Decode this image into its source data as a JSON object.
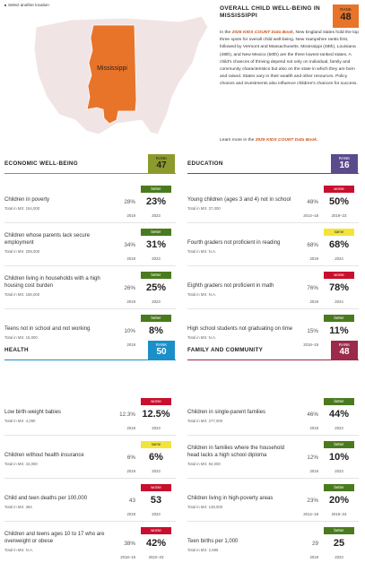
{
  "nav": {
    "back_link": "Select another location"
  },
  "map": {
    "state_label": "Mississippi"
  },
  "overview": {
    "title": "OVERALL CHILD WELL-BEING IN MISSISSIPPI",
    "rank_label": "RANK",
    "rank": 48,
    "text_before": "In the ",
    "text_emphasis": "2025 KIDS COUNT Data Book",
    "text_after": ", New England states hold the top three spots for overall child well-being. New Hampshire ranks first, followed by Vermont and Massachusetts. Mississippi (48th), Louisiana (49th), and New Mexico (50th) are the three lowest-ranked states. A child's chances of thriving depend not only on individual, family and community characteristics but also on the state in which they are born and raised. States vary in their wealth and other resources. Policy choices and investments also influence children's chances for success.",
    "learn_before": "Learn more in the ",
    "learn_emphasis": "2025 KIDS COUNT Data Book",
    "learn_after": "."
  },
  "sections": [
    {
      "title": "ECONOMIC WELL-BEING",
      "rank_label": "RANK",
      "rank": 47,
      "color": "#8c9a2c",
      "rank_text_color": "#222",
      "indicators": [
        {
          "name": "Children in poverty",
          "total": "Total in MS: 154,000",
          "old_value": "28%",
          "old_year": "2019",
          "trend": "better",
          "new_value": "23%",
          "new_year": "2023"
        },
        {
          "name": "Children whose parents lack secure employment",
          "total": "Total in MS: 209,000",
          "old_value": "34%",
          "old_year": "2019",
          "trend": "better",
          "new_value": "31%",
          "new_year": "2023"
        },
        {
          "name": "Children living in households with a high housing cost burden",
          "total": "Total in MS: 166,000",
          "old_value": "26%",
          "old_year": "2019",
          "trend": "better",
          "new_value": "25%",
          "new_year": "2023"
        },
        {
          "name": "Teens not in school and not working",
          "total": "Total in MS: 15,000",
          "old_value": "10%",
          "old_year": "2019",
          "trend": "better",
          "new_value": "8%",
          "new_year": "2023"
        }
      ]
    },
    {
      "title": "EDUCATION",
      "rank_label": "RANK",
      "rank": 16,
      "color": "#5b4a8c",
      "rank_text_color": "#fff",
      "indicators": [
        {
          "name": "Young children (ages 3 and 4) not in school",
          "total": "Total in MS: 37,000",
          "old_value": "48%",
          "old_year": "2014–18",
          "trend": "worse",
          "new_value": "50%",
          "new_year": "2019–23"
        },
        {
          "name": "Fourth graders not proficient in reading",
          "total": "Total in MS: N.A.",
          "old_value": "68%",
          "old_year": "2019",
          "trend": "same",
          "new_value": "68%",
          "new_year": "2024"
        },
        {
          "name": "Eighth graders not proficient in math",
          "total": "Total in MS: N.A.",
          "old_value": "76%",
          "old_year": "2019",
          "trend": "worse",
          "new_value": "78%",
          "new_year": "2024"
        },
        {
          "name": "High school students not graduating on time",
          "total": "Total in MS: N.A.",
          "old_value": "15%",
          "old_year": "2018–19",
          "trend": "better",
          "new_value": "11%",
          "new_year": "2021–22"
        }
      ]
    },
    {
      "title": "HEALTH",
      "rank_label": "RANK",
      "rank": 50,
      "color": "#1a8fc8",
      "rank_text_color": "#fff",
      "indicators": [
        {
          "name": "Low birth-weight babies",
          "total": "Total in MS: 4,290",
          "old_value": "12.3%",
          "old_year": "2019",
          "trend": "worse",
          "new_value": "12.5%",
          "new_year": "2023"
        },
        {
          "name": "Children without health insurance",
          "total": "Total in MS: 43,000",
          "old_value": "6%",
          "old_year": "2019",
          "trend": "same",
          "new_value": "6%",
          "new_year": "2023"
        },
        {
          "name": "Child and teen deaths per 100,000",
          "total": "Total in MS: 384",
          "old_value": "43",
          "old_year": "2019",
          "trend": "worse",
          "new_value": "53",
          "new_year": "2023"
        },
        {
          "name": "Children and teens ages 10 to 17 who are overweight or obese",
          "total": "Total in MS: N.A.",
          "old_value": "38%",
          "old_year": "2018–19",
          "trend": "worse",
          "new_value": "42%",
          "new_year": "2022–23"
        }
      ]
    },
    {
      "title": "FAMILY AND COMMUNITY",
      "rank_label": "RANK",
      "rank": 48,
      "color": "#9c2a4a",
      "rank_text_color": "#fff",
      "indicators": [
        {
          "name": "Children in single-parent families",
          "total": "Total in MS: 277,000",
          "old_value": "46%",
          "old_year": "2019",
          "trend": "better",
          "new_value": "44%",
          "new_year": "2023"
        },
        {
          "name": "Children in families where the household head lacks a high school diploma",
          "total": "Total in MS: 84,000",
          "old_value": "12%",
          "old_year": "2019",
          "trend": "better",
          "new_value": "10%",
          "new_year": "2023"
        },
        {
          "name": "Children living in high-poverty areas",
          "total": "Total in MS: 138,000",
          "old_value": "23%",
          "old_year": "2014–18",
          "trend": "better",
          "new_value": "20%",
          "new_year": "2019–23"
        },
        {
          "name": "Teen births per 1,000",
          "total": "Total in MS: 2,596",
          "old_value": "29",
          "old_year": "2019",
          "trend": "better",
          "new_value": "25",
          "new_year": "2023"
        }
      ]
    }
  ]
}
